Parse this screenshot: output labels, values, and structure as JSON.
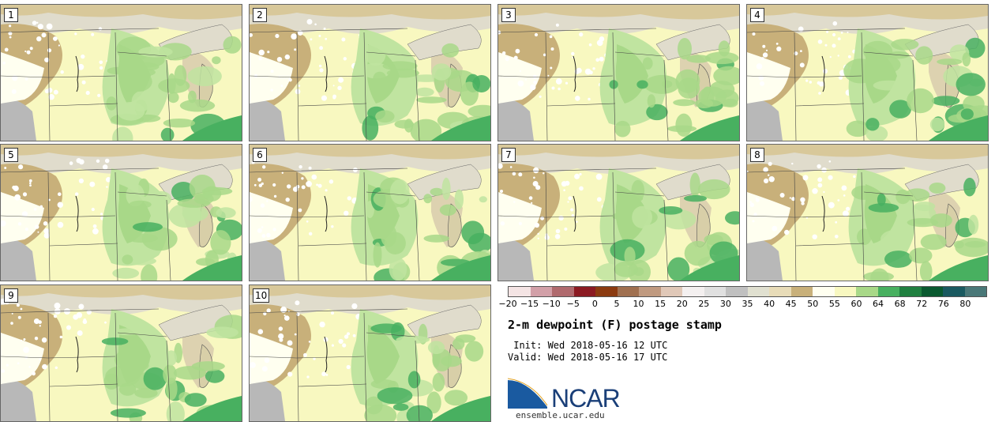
{
  "panels": [
    {
      "label": "1"
    },
    {
      "label": "2"
    },
    {
      "label": "3"
    },
    {
      "label": "4"
    },
    {
      "label": "5"
    },
    {
      "label": "6"
    },
    {
      "label": "7"
    },
    {
      "label": "8"
    },
    {
      "label": "9"
    },
    {
      "label": "10"
    }
  ],
  "colorbar": {
    "ticks": [
      "−20",
      "−15",
      "−10",
      "−5",
      "0",
      "5",
      "10",
      "15",
      "20",
      "25",
      "30",
      "35",
      "40",
      "45",
      "50",
      "55",
      "60",
      "64",
      "68",
      "72",
      "76",
      "80"
    ],
    "colors": [
      "#f4e4e4",
      "#d2a0a8",
      "#b06a6e",
      "#8b1a22",
      "#8b3a10",
      "#a07050",
      "#c09a80",
      "#e0c8b8",
      "#f4f0f0",
      "#e0e0e0",
      "#c0c0c0",
      "#e0e0d0",
      "#e8dcb8",
      "#c8b07a",
      "#fffff0",
      "#f8f8c0",
      "#a8d888",
      "#48b060",
      "#208040",
      "#0a5a30",
      "#1a5a60",
      "#4a7878"
    ]
  },
  "title": "2-m dewpoint (F) postage stamp",
  "init": " Init: Wed 2018-05-16 12 UTC",
  "valid": "Valid: Wed 2018-05-16 17 UTC",
  "logo": {
    "name": "NCAR",
    "url": "ensemble.ucar.edu",
    "color": "#1a3f78",
    "accent": "#2a7ac0"
  }
}
